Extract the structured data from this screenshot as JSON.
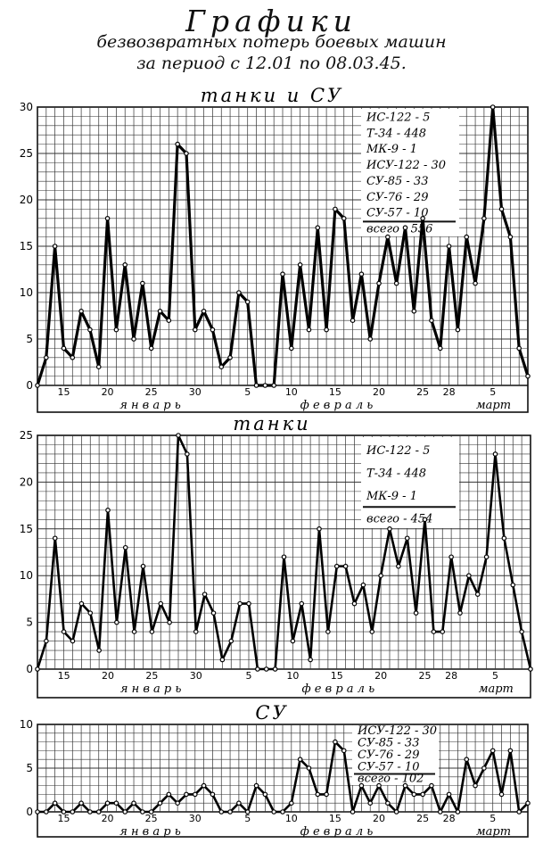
{
  "header": {
    "title": "Графики",
    "subtitle": "безвозвратных потерь боевых машин",
    "period": "за период с 12.01 по 08.03.45."
  },
  "chart_data": [
    {
      "type": "line",
      "title": "танки и СУ",
      "ylim": [
        0,
        30
      ],
      "yticks": [
        0,
        5,
        10,
        15,
        20,
        25,
        30
      ],
      "x_tick_labels": [
        "15",
        "20",
        "25",
        "30",
        "5",
        "10",
        "15",
        "20",
        "25",
        "28",
        "5"
      ],
      "month_labels": [
        "январь",
        "февраль",
        "март"
      ],
      "legend": [
        "ИС-122 - 5",
        "Т-34 - 448",
        "МК-9 - 1",
        "ИСУ-122 - 30",
        "СУ-85 - 33",
        "СУ-76 - 29",
        "СУ-57 - 10",
        "всего - 556"
      ],
      "series": [
        {
          "values": [
            0,
            3,
            15,
            4,
            3,
            8,
            6,
            2,
            18,
            6,
            13,
            5,
            11,
            4,
            8,
            7,
            26,
            25,
            6,
            8,
            6,
            2,
            3,
            10,
            9,
            0,
            0,
            0,
            12,
            4,
            13,
            6,
            17,
            6,
            19,
            18,
            7,
            12,
            5,
            11,
            16,
            11,
            17,
            8,
            18,
            7,
            4,
            15,
            6,
            16,
            11,
            18,
            30,
            19,
            16,
            4,
            1
          ]
        }
      ]
    },
    {
      "type": "line",
      "title": "танки",
      "ylim": [
        0,
        25
      ],
      "yticks": [
        0,
        5,
        10,
        15,
        20,
        25
      ],
      "x_tick_labels": [
        "15",
        "20",
        "25",
        "30",
        "5",
        "10",
        "15",
        "20",
        "25",
        "28",
        "5"
      ],
      "month_labels": [
        "январь",
        "февраль",
        "март"
      ],
      "legend": [
        "ИС-122 - 5",
        "Т-34 - 448",
        "МК-9 - 1",
        "всего - 454"
      ],
      "series": [
        {
          "values": [
            0,
            3,
            14,
            4,
            3,
            7,
            6,
            2,
            17,
            5,
            13,
            4,
            11,
            4,
            7,
            5,
            25,
            23,
            4,
            8,
            6,
            1,
            3,
            7,
            7,
            0,
            0,
            0,
            12,
            3,
            7,
            1,
            15,
            4,
            11,
            11,
            7,
            9,
            4,
            10,
            15,
            11,
            14,
            6,
            16,
            4,
            4,
            12,
            6,
            10,
            8,
            12,
            23,
            14,
            9,
            4,
            0
          ]
        }
      ]
    },
    {
      "type": "line",
      "title": "СУ",
      "ylim": [
        0,
        10
      ],
      "yticks": [
        0,
        5,
        10
      ],
      "x_tick_labels": [
        "15",
        "20",
        "25",
        "30",
        "5",
        "10",
        "15",
        "20",
        "25",
        "28",
        "5"
      ],
      "month_labels": [
        "январь",
        "февраль",
        "март"
      ],
      "legend": [
        "ИСУ-122 - 30",
        "СУ-85 - 33",
        "СУ-76 - 29",
        "СУ-57 - 10",
        "всего - 102"
      ],
      "series": [
        {
          "values": [
            0,
            0,
            1,
            0,
            0,
            1,
            0,
            0,
            1,
            1,
            0,
            1,
            0,
            0,
            1,
            2,
            1,
            2,
            2,
            3,
            2,
            0,
            0,
            1,
            0,
            3,
            2,
            0,
            0,
            1,
            6,
            5,
            2,
            2,
            8,
            7,
            0,
            3,
            1,
            3,
            1,
            0,
            3,
            2,
            2,
            3,
            0,
            2,
            0,
            6,
            3,
            5,
            7,
            2,
            7,
            0,
            1
          ]
        }
      ]
    }
  ]
}
